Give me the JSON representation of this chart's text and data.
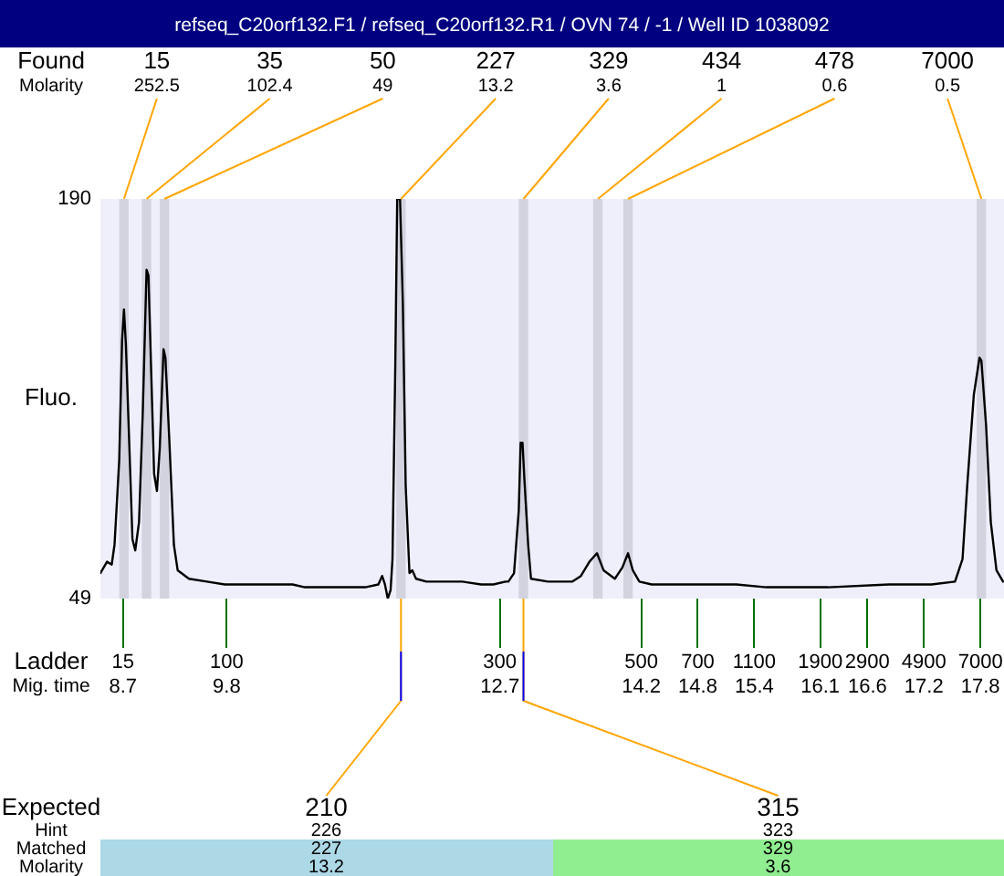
{
  "chart_data": {
    "type": "line",
    "title": "refseq_C20orf132.F1 / refseq_C20orf132.R1 / OVN 74 / -1 / Well ID 1038092",
    "ylabel": "Fluo.",
    "xlabel": "Mig. time",
    "x": [
      8.46,
      8.53,
      8.58,
      8.61,
      8.66,
      8.69,
      8.71,
      8.73,
      8.77,
      8.8,
      8.83,
      8.87,
      8.91,
      8.95,
      8.97,
      9.0,
      9.03,
      9.06,
      9.09,
      9.13,
      9.15,
      9.19,
      9.24,
      9.28,
      9.4,
      9.59,
      9.78,
      10.17,
      10.5,
      10.63,
      10.88,
      11.27,
      11.41,
      11.45,
      11.48,
      11.51,
      11.54,
      11.56,
      11.59,
      11.61,
      11.64,
      11.67,
      11.7,
      11.74,
      11.77,
      11.81,
      11.92,
      12.11,
      12.3,
      12.5,
      12.63,
      12.76,
      12.79,
      12.85,
      12.9,
      12.92,
      12.94,
      12.96,
      13.0,
      13.03,
      13.21,
      13.47,
      13.56,
      13.65,
      13.73,
      13.8,
      13.92,
      14.0,
      14.06,
      14.11,
      14.18,
      14.31,
      14.56,
      14.89,
      15.21,
      15.53,
      16.18,
      16.83,
      17.28,
      17.53,
      17.61,
      17.66,
      17.73,
      17.79,
      17.81,
      17.86,
      17.91,
      17.97,
      18.04
    ],
    "values": [
      58,
      62,
      61,
      68,
      98,
      140,
      151,
      139,
      100,
      70,
      66,
      76,
      115,
      165,
      163,
      128,
      93,
      87,
      102,
      137,
      134,
      106,
      68,
      59,
      56,
      55,
      54,
      54,
      54,
      53,
      53,
      53,
      54,
      57,
      54,
      49,
      52,
      63,
      132,
      190,
      190,
      153,
      89,
      58,
      59,
      56,
      55,
      55,
      55,
      54,
      54,
      55,
      55,
      58,
      80,
      104,
      104,
      91,
      68,
      56,
      55,
      55,
      57,
      62,
      65,
      59,
      56,
      60,
      65,
      59,
      55,
      54,
      54,
      54,
      54,
      53,
      53,
      54,
      54,
      55,
      63,
      89,
      121,
      134,
      133,
      110,
      76,
      59,
      55
    ],
    "color": "#000000",
    "marker": "none",
    "xlim": [
      8.46,
      18.05
    ],
    "xticks": [
      8.7,
      9.8,
      12.7,
      14.2,
      14.8,
      15.4,
      16.1,
      16.6,
      17.2,
      17.8
    ],
    "ylim": [
      49,
      190
    ],
    "yticks": [
      49,
      190
    ],
    "bands": [
      {
        "axis": "x",
        "from": 8.66,
        "to": 8.76,
        "label": "15",
        "color": "#d3d3e0"
      },
      {
        "axis": "x",
        "from": 8.9,
        "to": 9.0,
        "label": "35",
        "color": "#d3d3e0"
      },
      {
        "axis": "x",
        "from": 9.09,
        "to": 9.19,
        "label": "50",
        "color": "#d3d3e0"
      },
      {
        "axis": "x",
        "from": 11.6,
        "to": 11.7,
        "label": "227",
        "color": "#d3d3e0"
      },
      {
        "axis": "x",
        "from": 12.9,
        "to": 13.0,
        "label": "329",
        "color": "#d3d3e0"
      },
      {
        "axis": "x",
        "from": 13.69,
        "to": 13.79,
        "label": "434",
        "color": "#d3d3e0"
      },
      {
        "axis": "x",
        "from": 14.01,
        "to": 14.11,
        "label": "478",
        "color": "#d3d3e0"
      },
      {
        "axis": "x",
        "from": 17.76,
        "to": 17.86,
        "label": "7000",
        "color": "#d3d3e0"
      }
    ],
    "annotations": [
      "Found",
      "Molarity",
      {
        "text": "252.5",
        "x": 8.71,
        "y": 190
      },
      {
        "text": "102.4",
        "x": 8.95,
        "y": 190
      },
      {
        "text": "49",
        "x": 9.14,
        "y": 190
      },
      {
        "text": "13.2",
        "x": 11.65,
        "y": 190
      },
      {
        "text": "3.6",
        "x": 12.95,
        "y": 190
      },
      {
        "text": "1",
        "x": 13.74,
        "y": 190
      },
      {
        "text": "0.6",
        "x": 14.06,
        "y": 190
      },
      {
        "text": "0.5",
        "x": 17.81,
        "y": 190
      },
      "Ladder",
      "15",
      "100",
      "300",
      "500",
      "700",
      "1100",
      "1900",
      "2900",
      "4900",
      "7000",
      "Expected",
      "Hint",
      "Matched",
      "Molarity",
      {
        "text": "210",
        "x": 11.65,
        "y": 49
      },
      "226",
      "227",
      "13.2",
      {
        "text": "315",
        "x": 12.95,
        "y": 49
      },
      "323",
      "329",
      "3.6"
    ]
  }
}
